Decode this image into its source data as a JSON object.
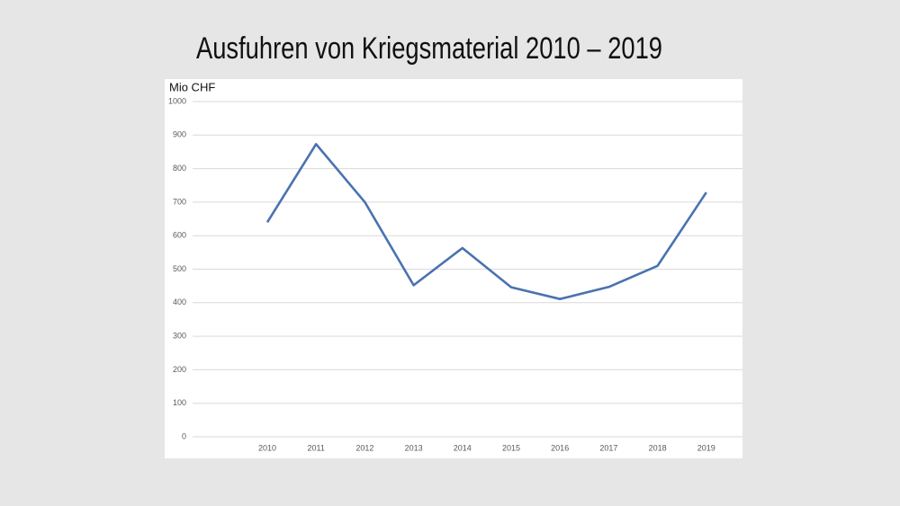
{
  "chart_data": {
    "type": "line",
    "title": "Ausfuhren von Kriegsmaterial 2010 – 2019",
    "ylabel": "Mio CHF",
    "categories": [
      "2010",
      "2011",
      "2012",
      "2013",
      "2014",
      "2015",
      "2016",
      "2017",
      "2018",
      "2019"
    ],
    "values": [
      640,
      873,
      700,
      452,
      563,
      446,
      411,
      447,
      510,
      729
    ],
    "color": "#4a72b0",
    "ylim": [
      0,
      1000
    ],
    "yticks": [
      0,
      100,
      200,
      300,
      400,
      500,
      600,
      700,
      800,
      900,
      1000
    ],
    "grid": true
  }
}
